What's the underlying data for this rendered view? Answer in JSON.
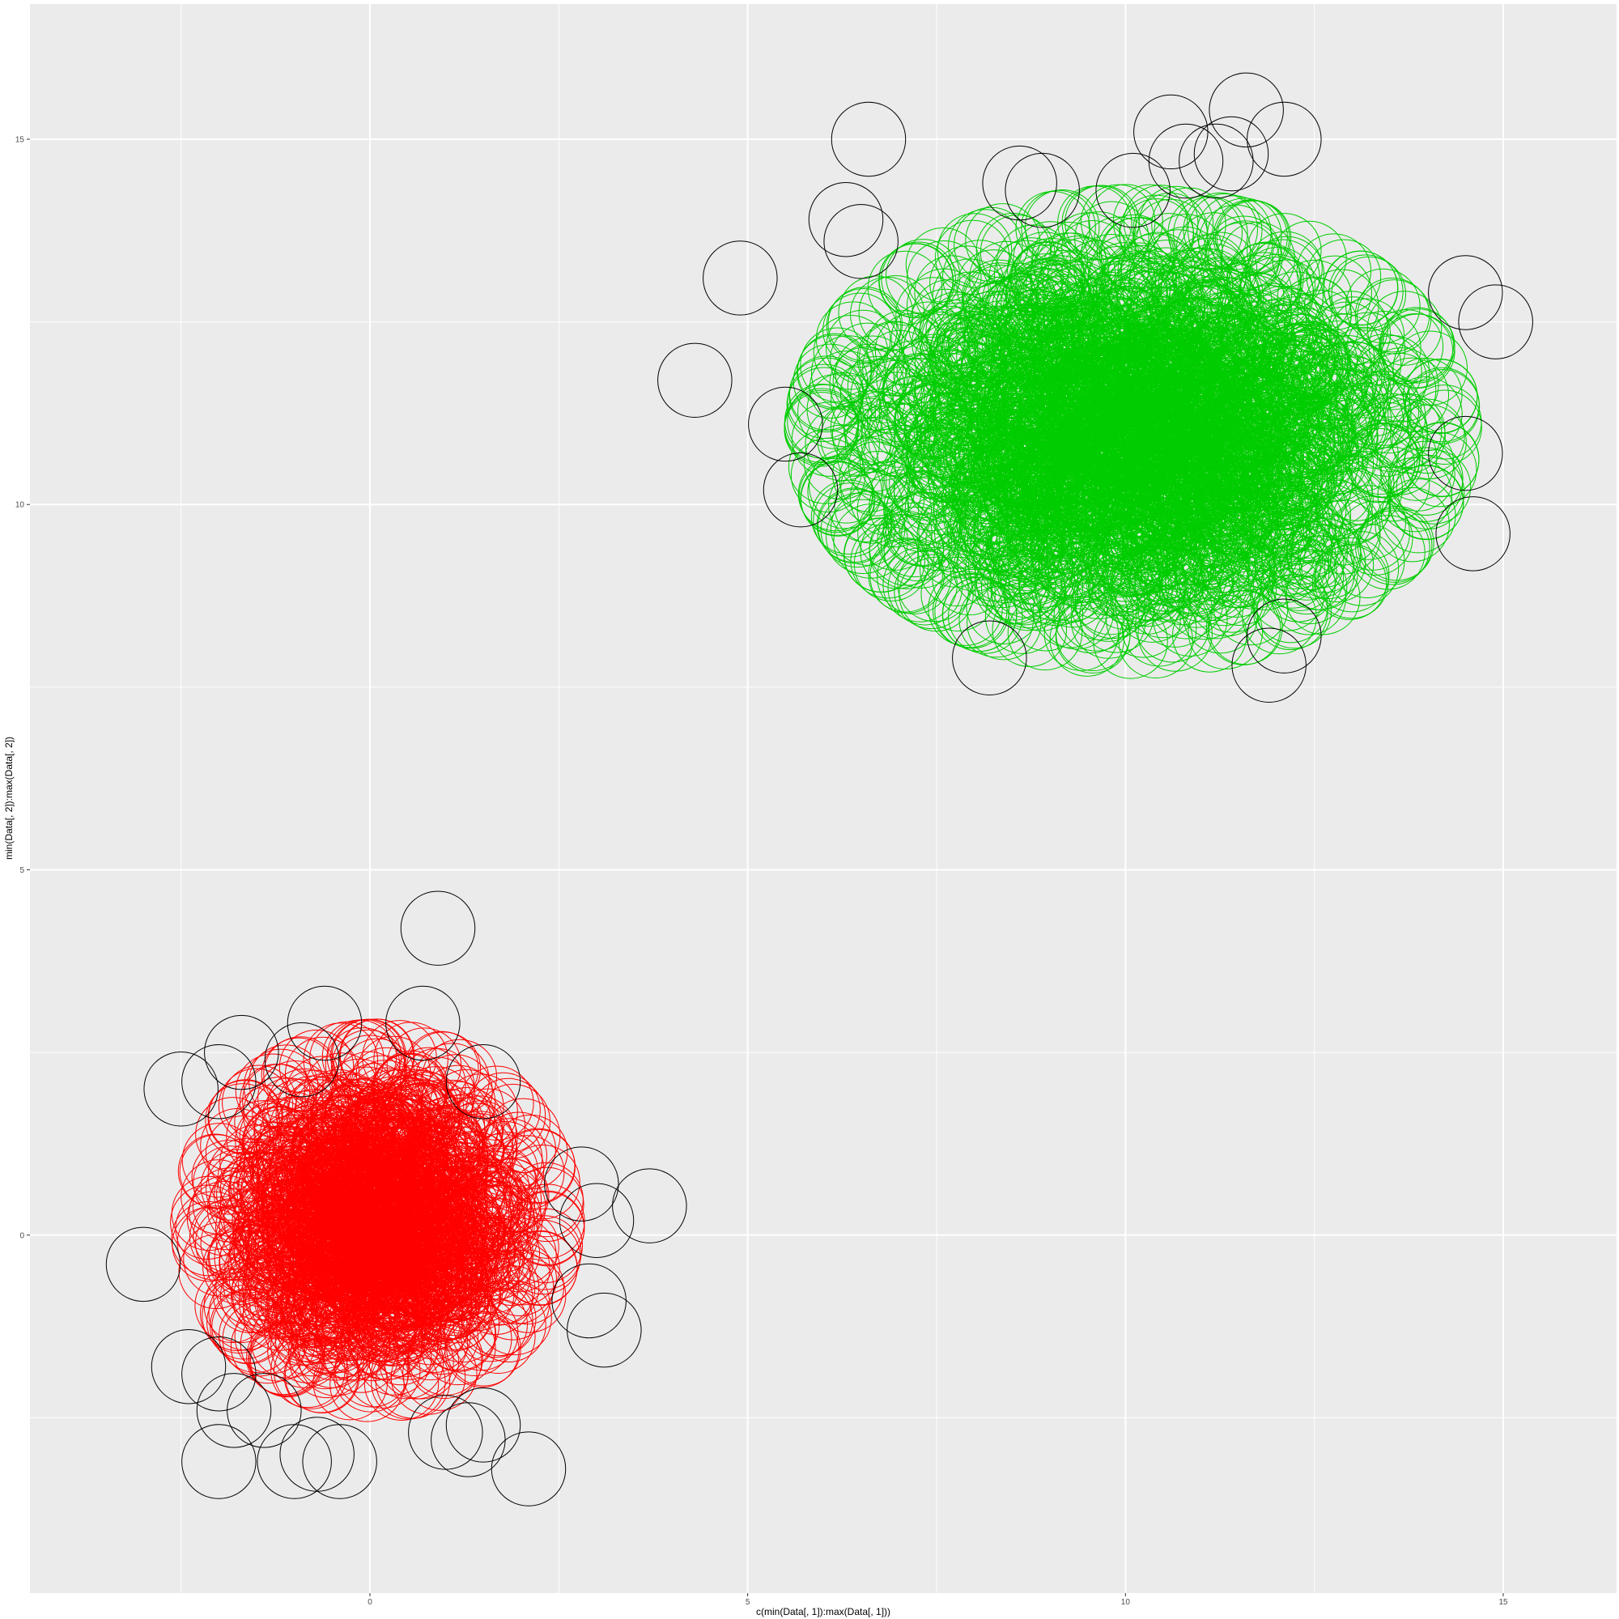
{
  "chart_data": {
    "type": "scatter",
    "xlabel": "c(min(Data[, 1]):max(Data[, 1]))",
    "ylabel": "min(Data[, 2]):max(Data[, 2])",
    "xlim": [
      -4.5,
      16.5
    ],
    "ylim": [
      -4.9,
      16.85
    ],
    "x_ticks": [
      0,
      5,
      10,
      15
    ],
    "y_ticks": [
      0,
      5,
      10,
      15
    ],
    "grid": true,
    "legend": "none",
    "marker": "open-circle",
    "series": [
      {
        "color": "#ff0000",
        "role": "cluster",
        "count": 1500,
        "center": [
          0.1,
          0.2
        ],
        "spread": [
          0.9,
          0.9
        ]
      },
      {
        "color": "#00cd00",
        "role": "cluster",
        "count": 2500,
        "center": [
          10.1,
          11.0
        ],
        "spread": [
          1.65,
          1.15
        ]
      },
      {
        "color": "#000000",
        "role": "outliers",
        "points": [
          [
            0.9,
            4.2
          ],
          [
            -0.6,
            2.9
          ],
          [
            0.7,
            2.9
          ],
          [
            -1.7,
            2.5
          ],
          [
            -2.5,
            2.0
          ],
          [
            -2.0,
            2.1
          ],
          [
            -0.9,
            2.4
          ],
          [
            1.5,
            2.1
          ],
          [
            2.8,
            0.7
          ],
          [
            3.7,
            0.4
          ],
          [
            3.0,
            0.2
          ],
          [
            -3.0,
            -0.4
          ],
          [
            2.9,
            -0.9
          ],
          [
            3.1,
            -1.3
          ],
          [
            -2.4,
            -1.8
          ],
          [
            -2.0,
            -1.9
          ],
          [
            -1.8,
            -2.4
          ],
          [
            -1.4,
            -2.4
          ],
          [
            -2.0,
            -3.1
          ],
          [
            -1.0,
            -3.1
          ],
          [
            -0.7,
            -3.0
          ],
          [
            -0.4,
            -3.1
          ],
          [
            1.0,
            -2.7
          ],
          [
            1.3,
            -2.8
          ],
          [
            1.5,
            -2.6
          ],
          [
            2.1,
            -3.2
          ],
          [
            6.6,
            15.0
          ],
          [
            6.3,
            13.9
          ],
          [
            4.9,
            13.1
          ],
          [
            4.3,
            11.7
          ],
          [
            5.5,
            11.1
          ],
          [
            5.7,
            10.2
          ],
          [
            8.6,
            14.4
          ],
          [
            8.9,
            14.3
          ],
          [
            10.1,
            14.3
          ],
          [
            10.6,
            15.1
          ],
          [
            10.8,
            14.7
          ],
          [
            11.2,
            14.7
          ],
          [
            11.6,
            15.4
          ],
          [
            12.1,
            15.0
          ],
          [
            11.4,
            14.8
          ],
          [
            14.5,
            12.9
          ],
          [
            14.9,
            12.5
          ],
          [
            14.5,
            10.7
          ],
          [
            14.6,
            9.6
          ],
          [
            8.2,
            7.9
          ],
          [
            12.1,
            8.2
          ],
          [
            11.9,
            7.8
          ],
          [
            6.5,
            13.6
          ]
        ]
      }
    ]
  }
}
